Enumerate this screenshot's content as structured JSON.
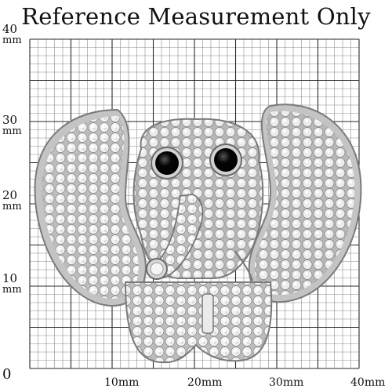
{
  "title": "Reference Measurement Only",
  "y_axis": {
    "unit": "mm",
    "labels": [
      "40",
      "30",
      "20",
      "10",
      "0"
    ]
  },
  "x_axis": {
    "labels": [
      "10mm",
      "20mm",
      "30mm",
      "40mm"
    ]
  },
  "subject": {
    "kind": "elephant-brooch",
    "colors": {
      "metal": "#c9c9c9",
      "stone": "#eeeeee",
      "eye": "#050505",
      "grid": "#2a2a2a"
    }
  }
}
